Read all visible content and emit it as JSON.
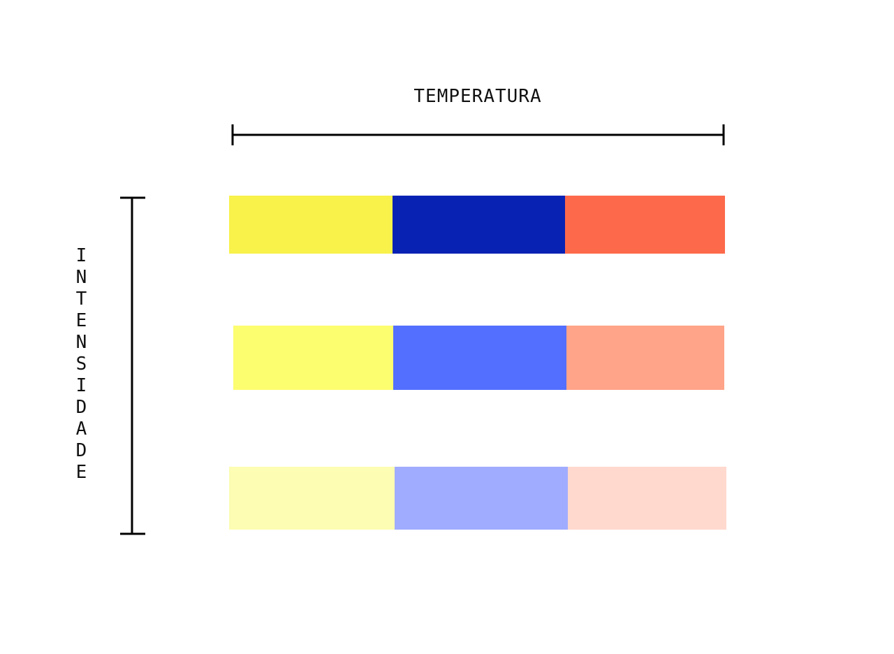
{
  "horizontal_axis": {
    "label": "TEMPERATURA"
  },
  "vertical_axis": {
    "label": "INTENSIDADE"
  },
  "rows": [
    {
      "name": "row-1",
      "swatches": [
        "#F8F24B",
        "#0822B4",
        "#FD694B"
      ]
    },
    {
      "name": "row-2",
      "swatches": [
        "#FDFD70",
        "#536FFF",
        "#FFA488"
      ]
    },
    {
      "name": "row-3",
      "swatches": [
        "#FDFDB3",
        "#A0ACFF",
        "#FFD9CE"
      ]
    }
  ]
}
